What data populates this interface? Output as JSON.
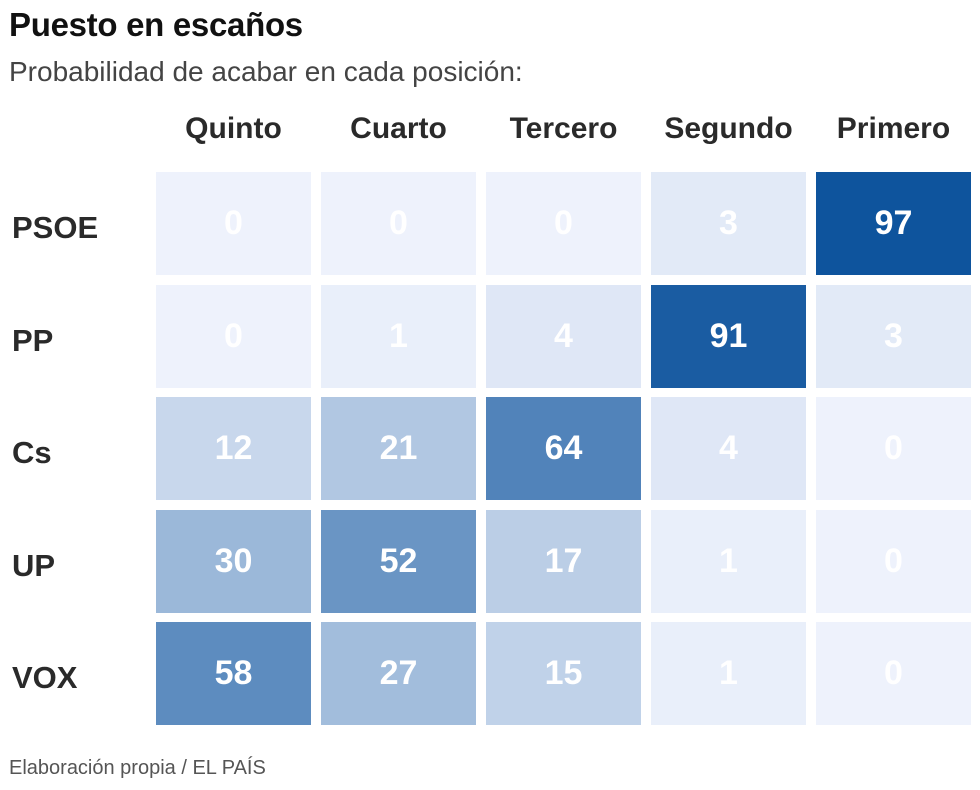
{
  "title": "Puesto en escaños",
  "subtitle": "Probabilidad de acabar en cada posición:",
  "source": "Elaboración propia / EL PAÍS",
  "chart_data": {
    "type": "heatmap",
    "title": "Puesto en escaños",
    "subtitle": "Probabilidad de acabar en cada posición:",
    "columns": [
      "Quinto",
      "Cuarto",
      "Tercero",
      "Segundo",
      "Primero"
    ],
    "rows": [
      "PSOE",
      "PP",
      "Cs",
      "UP",
      "VOX"
    ],
    "values": [
      [
        0,
        0,
        0,
        3,
        97
      ],
      [
        0,
        1,
        4,
        91,
        3
      ],
      [
        12,
        21,
        64,
        4,
        0
      ],
      [
        30,
        52,
        17,
        1,
        0
      ],
      [
        58,
        27,
        15,
        1,
        0
      ]
    ],
    "value_range": [
      0,
      100
    ],
    "color_low": "#eef2fc",
    "color_high": "#08509b"
  }
}
